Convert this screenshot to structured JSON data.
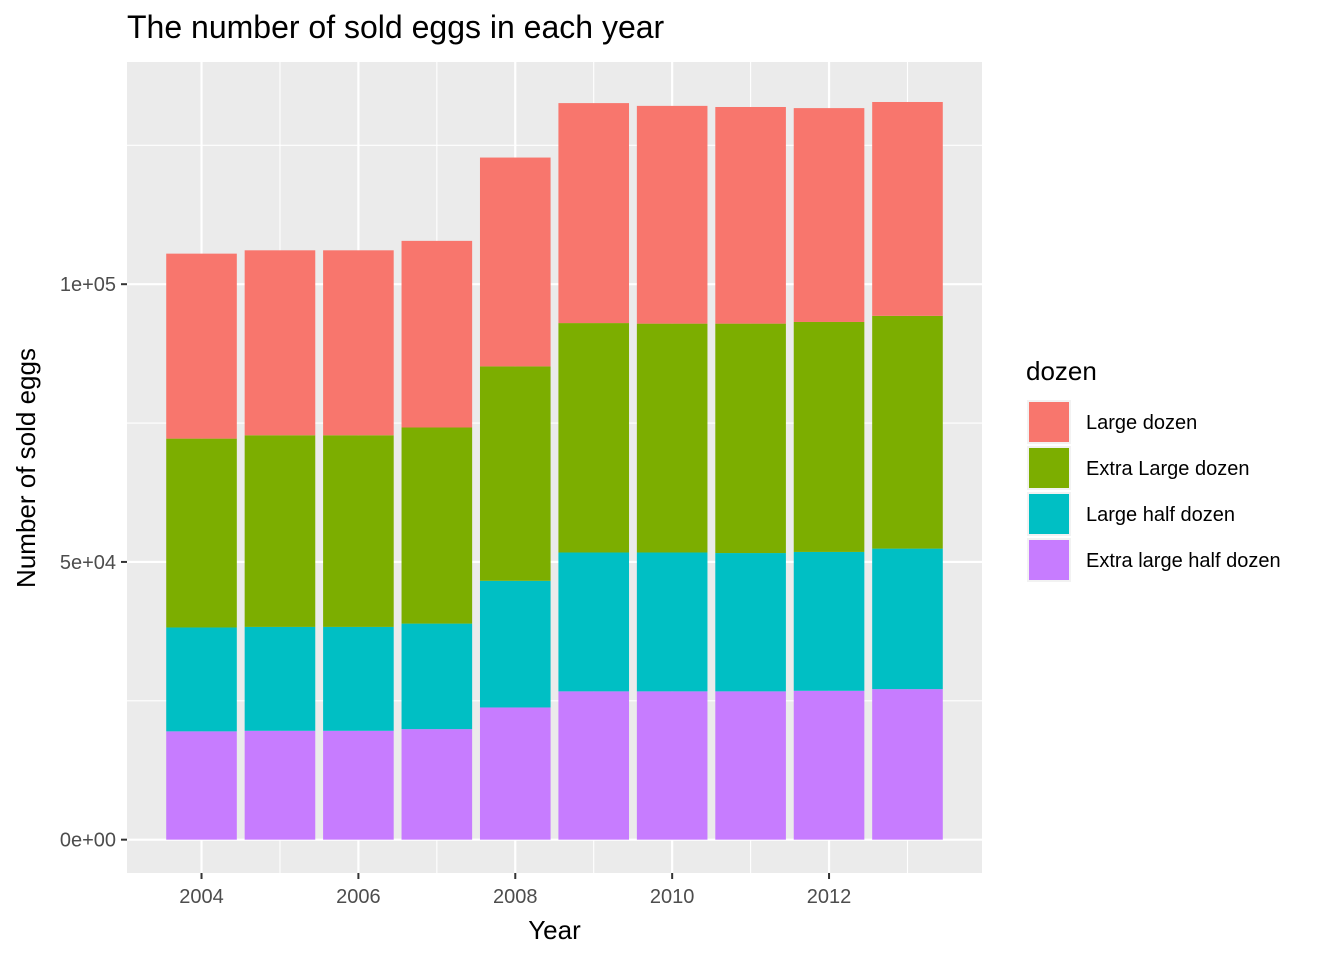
{
  "chart_data": {
    "type": "bar",
    "stacked": true,
    "title": "The number of sold eggs in each year",
    "xlabel": "Year",
    "ylabel": "Number of sold eggs",
    "x": [
      2004,
      2005,
      2006,
      2007,
      2008,
      2009,
      2010,
      2011,
      2012,
      2013
    ],
    "xticks": [
      2004,
      2006,
      2008,
      2010,
      2012
    ],
    "xticklabels": [
      "2004",
      "2006",
      "2008",
      "2010",
      "2012"
    ],
    "xlim": [
      2003.05,
      2013.95
    ],
    "yticks": [
      0,
      50000,
      100000
    ],
    "yticklabels": [
      "0e+00",
      "5e+04",
      "1e+05"
    ],
    "ylim": [
      -6000,
      140000
    ],
    "grid": true,
    "legend_title": "dozen",
    "legend_position": "right",
    "series": [
      {
        "name": "Large dozen",
        "color": "#F8766D",
        "values": [
          33300,
          33300,
          33300,
          33600,
          37600,
          39600,
          39200,
          39000,
          38500,
          38500
        ]
      },
      {
        "name": "Extra Large dozen",
        "color": "#7CAE00",
        "values": [
          34000,
          34500,
          34500,
          35300,
          38600,
          41300,
          41200,
          41300,
          41400,
          41900
        ]
      },
      {
        "name": "Large half dozen",
        "color": "#00BFC4",
        "values": [
          18700,
          18700,
          18700,
          19000,
          22800,
          25000,
          25000,
          24900,
          25000,
          25300
        ]
      },
      {
        "name": "Extra large half dozen",
        "color": "#C77CFF",
        "values": [
          19500,
          19600,
          19600,
          19900,
          23800,
          26700,
          26700,
          26700,
          26800,
          27100
        ]
      }
    ]
  }
}
